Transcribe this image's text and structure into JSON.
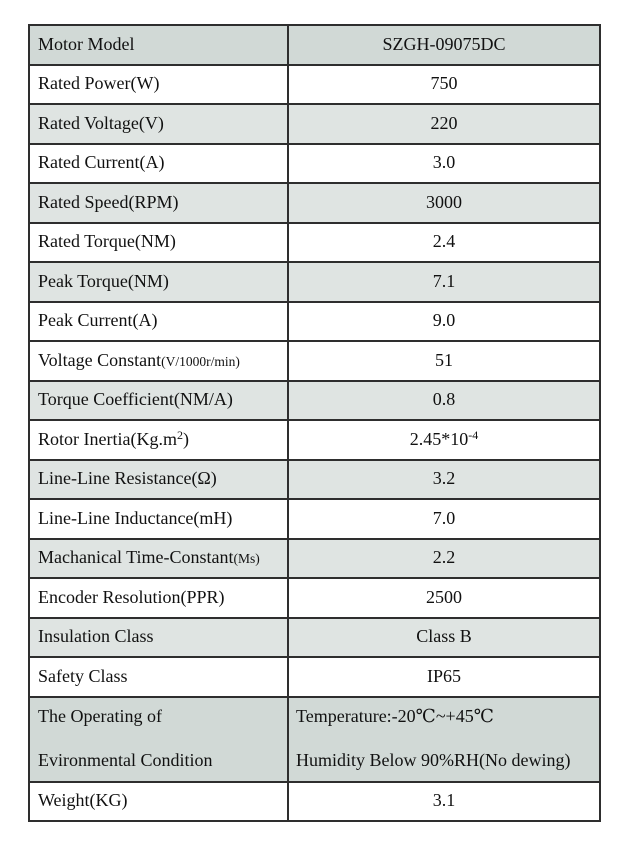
{
  "colors": {
    "page_background": "#ffffff",
    "row_dark": "#d1d9d6",
    "row_light": "#dfe4e2",
    "row_white": "#ffffff",
    "grid_border": "#2e2e2e",
    "text": "#111111"
  },
  "table": {
    "name": "motor-specification-table",
    "columns": [
      "parameter",
      "value"
    ],
    "rows": [
      {
        "shade": "dark",
        "tall": false,
        "value_align": "center",
        "label_lines": [
          [
            {
              "t": "Motor Model"
            }
          ]
        ],
        "value_lines": [
          [
            {
              "t": "SZGH-09075DC"
            }
          ]
        ]
      },
      {
        "shade": "white",
        "tall": false,
        "value_align": "center",
        "label_lines": [
          [
            {
              "t": "Rated Power(W)"
            }
          ]
        ],
        "value_lines": [
          [
            {
              "t": "750"
            }
          ]
        ]
      },
      {
        "shade": "light",
        "tall": false,
        "value_align": "center",
        "label_lines": [
          [
            {
              "t": "Rated Voltage(V)"
            }
          ]
        ],
        "value_lines": [
          [
            {
              "t": "220"
            }
          ]
        ]
      },
      {
        "shade": "white",
        "tall": false,
        "value_align": "center",
        "label_lines": [
          [
            {
              "t": "Rated Current(A)"
            }
          ]
        ],
        "value_lines": [
          [
            {
              "t": "3.0"
            }
          ]
        ]
      },
      {
        "shade": "light",
        "tall": false,
        "value_align": "center",
        "label_lines": [
          [
            {
              "t": "Rated Speed(RPM)"
            }
          ]
        ],
        "value_lines": [
          [
            {
              "t": "3000"
            }
          ]
        ]
      },
      {
        "shade": "white",
        "tall": false,
        "value_align": "center",
        "label_lines": [
          [
            {
              "t": "Rated Torque(NM)"
            }
          ]
        ],
        "value_lines": [
          [
            {
              "t": "2.4"
            }
          ]
        ]
      },
      {
        "shade": "light",
        "tall": false,
        "value_align": "center",
        "label_lines": [
          [
            {
              "t": "Peak Torque(NM)"
            }
          ]
        ],
        "value_lines": [
          [
            {
              "t": "7.1"
            }
          ]
        ]
      },
      {
        "shade": "white",
        "tall": false,
        "value_align": "center",
        "label_lines": [
          [
            {
              "t": "Peak Current(A)"
            }
          ]
        ],
        "value_lines": [
          [
            {
              "t": "9.0"
            }
          ]
        ]
      },
      {
        "shade": "white",
        "tall": false,
        "value_align": "center",
        "label_lines": [
          [
            {
              "t": "Voltage Constant"
            },
            {
              "t": "(V/1000r/min)",
              "k": "small"
            }
          ]
        ],
        "value_lines": [
          [
            {
              "t": "51"
            }
          ]
        ]
      },
      {
        "shade": "light",
        "tall": false,
        "value_align": "center",
        "label_lines": [
          [
            {
              "t": "Torque Coefficient(NM/A)"
            }
          ]
        ],
        "value_lines": [
          [
            {
              "t": "0.8"
            }
          ]
        ]
      },
      {
        "shade": "white",
        "tall": false,
        "value_align": "center",
        "label_lines": [
          [
            {
              "t": "Rotor Inertia(Kg.m"
            },
            {
              "t": "2",
              "k": "sup"
            },
            {
              "t": ")"
            }
          ]
        ],
        "value_lines": [
          [
            {
              "t": "2.45*10"
            },
            {
              "t": "-4",
              "k": "sup"
            }
          ]
        ]
      },
      {
        "shade": "light",
        "tall": false,
        "value_align": "center",
        "label_lines": [
          [
            {
              "t": "Line-Line Resistance(Ω)"
            }
          ]
        ],
        "value_lines": [
          [
            {
              "t": "3.2"
            }
          ]
        ]
      },
      {
        "shade": "white",
        "tall": false,
        "value_align": "center",
        "label_lines": [
          [
            {
              "t": "Line-Line Inductance(mH)"
            }
          ]
        ],
        "value_lines": [
          [
            {
              "t": "7.0"
            }
          ]
        ]
      },
      {
        "shade": "light",
        "tall": false,
        "value_align": "center",
        "label_lines": [
          [
            {
              "t": "Machanical Time-Constant"
            },
            {
              "t": "(Ms)",
              "k": "small"
            }
          ]
        ],
        "value_lines": [
          [
            {
              "t": "2.2"
            }
          ]
        ]
      },
      {
        "shade": "white",
        "tall": false,
        "value_align": "center",
        "label_lines": [
          [
            {
              "t": "Encoder Resolution(PPR)"
            }
          ]
        ],
        "value_lines": [
          [
            {
              "t": "2500"
            }
          ]
        ]
      },
      {
        "shade": "light",
        "tall": false,
        "value_align": "center",
        "label_lines": [
          [
            {
              "t": "Insulation Class"
            }
          ]
        ],
        "value_lines": [
          [
            {
              "t": "Class B"
            }
          ]
        ]
      },
      {
        "shade": "white",
        "tall": false,
        "value_align": "center",
        "label_lines": [
          [
            {
              "t": "Safety Class"
            }
          ]
        ],
        "value_lines": [
          [
            {
              "t": "IP65"
            }
          ]
        ]
      },
      {
        "shade": "dark",
        "tall": true,
        "value_align": "left",
        "label_lines": [
          [
            {
              "t": "The Operating of"
            }
          ],
          [
            {
              "t": "Evironmental Condition"
            }
          ]
        ],
        "value_lines": [
          [
            {
              "t": "Temperature:-20℃~+45℃"
            }
          ],
          [
            {
              "t": "Humidity Below 90%RH(No dewing)"
            }
          ]
        ]
      },
      {
        "shade": "white",
        "tall": false,
        "value_align": "center",
        "label_lines": [
          [
            {
              "t": "Weight(KG)"
            }
          ]
        ],
        "value_lines": [
          [
            {
              "t": "3.1"
            }
          ]
        ]
      }
    ]
  }
}
